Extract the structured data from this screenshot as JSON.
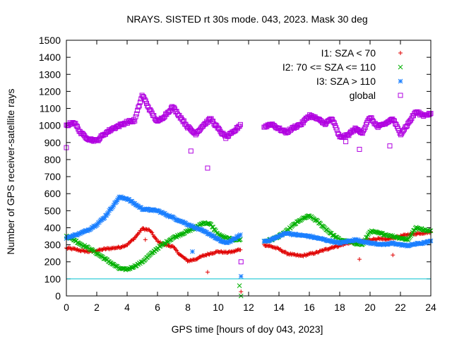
{
  "chart_data": {
    "type": "scatter",
    "title": "NRAYS. SISTED rt 30s mode. 043, 2023. Mask 30 deg",
    "xlabel": "GPS time [hours of doy 043, 2023]",
    "ylabel": "Number of GPS receiver-satellite rays",
    "xlim": [
      0,
      24
    ],
    "ylim": [
      0,
      1500
    ],
    "xticks": [
      "0",
      "2",
      "4",
      "6",
      "8",
      "10",
      "12",
      "14",
      "16",
      "18",
      "20",
      "22",
      "24"
    ],
    "yticks": [
      "0",
      "100",
      "200",
      "300",
      "400",
      "500",
      "600",
      "700",
      "800",
      "900",
      "1000",
      "1100",
      "1200",
      "1300",
      "1400",
      "1500"
    ],
    "legend_position": "top-right",
    "reference_line": {
      "y": 100,
      "color": "#00c0d0"
    },
    "gap": [
      11.6,
      12.9
    ],
    "series": [
      {
        "name": "I1: SZA < 70",
        "marker": "+",
        "color": "#e00000",
        "x": [
          0,
          0.5,
          1,
          1.5,
          2,
          2.5,
          3,
          3.5,
          4,
          4.5,
          5,
          5.5,
          6,
          6.5,
          7,
          7.5,
          8,
          8.5,
          9,
          9.5,
          10,
          10.5,
          11,
          11.5,
          13,
          13.5,
          14,
          14.5,
          15,
          15.5,
          16,
          16.5,
          17,
          17.5,
          18,
          18.5,
          19,
          19.5,
          20,
          20.5,
          21,
          21.5,
          22,
          22.5,
          23,
          23.5,
          24
        ],
        "values": [
          280,
          275,
          265,
          260,
          265,
          275,
          280,
          285,
          300,
          340,
          395,
          385,
          320,
          300,
          290,
          240,
          205,
          215,
          235,
          250,
          260,
          255,
          260,
          275,
          300,
          290,
          275,
          250,
          240,
          235,
          245,
          255,
          270,
          285,
          295,
          310,
          315,
          320,
          330,
          335,
          330,
          340,
          350,
          360,
          365,
          370,
          375
        ]
      },
      {
        "name": "I2: 70 <= SZA <= 110",
        "marker": "x",
        "color": "#00b000",
        "x": [
          0,
          0.5,
          1,
          1.5,
          2,
          2.5,
          3,
          3.5,
          4,
          4.5,
          5,
          5.5,
          6,
          6.5,
          7,
          7.5,
          8,
          8.5,
          9,
          9.5,
          10,
          10.5,
          11,
          11.5,
          13,
          13.5,
          14,
          14.5,
          15,
          15.5,
          16,
          16.5,
          17,
          17.5,
          18,
          18.5,
          19,
          19.5,
          20,
          20.5,
          21,
          21.5,
          22,
          22.5,
          23,
          23.5,
          24
        ],
        "values": [
          350,
          330,
          300,
          280,
          250,
          220,
          190,
          160,
          155,
          175,
          200,
          240,
          280,
          310,
          340,
          360,
          380,
          400,
          430,
          420,
          360,
          340,
          330,
          330,
          320,
          330,
          350,
          380,
          420,
          450,
          470,
          440,
          400,
          360,
          330,
          320,
          310,
          300,
          380,
          370,
          360,
          350,
          340,
          330,
          400,
          390,
          380
        ]
      },
      {
        "name": "I3: SZA > 110",
        "marker": "*",
        "color": "#1a7fff",
        "x": [
          0,
          0.5,
          1,
          1.5,
          2,
          2.5,
          3,
          3.5,
          4,
          4.5,
          5,
          5.5,
          6,
          6.5,
          7,
          7.5,
          8,
          8.5,
          9,
          9.5,
          10,
          10.5,
          11,
          11.5,
          13,
          13.5,
          14,
          14.5,
          15,
          15.5,
          16,
          16.5,
          17,
          17.5,
          18,
          18.5,
          19,
          19.5,
          20,
          20.5,
          21,
          21.5,
          22,
          22.5,
          23,
          23.5,
          24
        ],
        "values": [
          340,
          355,
          370,
          390,
          420,
          460,
          520,
          580,
          570,
          540,
          510,
          505,
          500,
          480,
          460,
          440,
          420,
          400,
          380,
          360,
          330,
          310,
          330,
          360,
          320,
          330,
          350,
          370,
          360,
          355,
          350,
          340,
          330,
          320,
          310,
          320,
          330,
          320,
          310,
          305,
          300,
          310,
          300,
          295,
          305,
          310,
          320
        ]
      },
      {
        "name": "global",
        "marker": "square",
        "color": "#b000e0",
        "x": [
          0,
          0.5,
          1,
          1.5,
          2,
          2.5,
          3,
          3.5,
          4,
          4.5,
          5,
          5.5,
          6,
          6.5,
          7,
          7.5,
          8,
          8.5,
          9,
          9.5,
          10,
          10.5,
          11,
          11.5,
          13,
          13.5,
          14,
          14.5,
          15,
          15.5,
          16,
          16.5,
          17,
          17.5,
          18,
          18.5,
          19,
          19.5,
          20,
          20.5,
          21,
          21.5,
          22,
          22.5,
          23,
          23.5,
          24
        ],
        "values": [
          1000,
          1020,
          950,
          920,
          910,
          950,
          980,
          1000,
          1020,
          1030,
          1180,
          1090,
          1020,
          1060,
          1110,
          1050,
          990,
          950,
          1000,
          1040,
          980,
          930,
          960,
          1010,
          990,
          1010,
          980,
          960,
          990,
          1010,
          1060,
          1040,
          1010,
          1040,
          930,
          940,
          980,
          960,
          1050,
          990,
          1010,
          1040,
          950,
          1010,
          1080,
          1060,
          1070
        ]
      }
    ],
    "outliers": [
      {
        "series": "I1: SZA < 70",
        "x": [
          5.2,
          9.3,
          11.5,
          19.3,
          21.5
        ],
        "values": [
          330,
          140,
          25,
          215,
          240
        ]
      },
      {
        "series": "I2: 70 <= SZA <= 110",
        "x": [
          11.4,
          11.5
        ],
        "values": [
          60,
          0
        ]
      },
      {
        "series": "I3: SZA > 110",
        "x": [
          8.3,
          11.5
        ],
        "values": [
          260,
          115
        ]
      },
      {
        "series": "global",
        "x": [
          0,
          8.2,
          9.3,
          11.5,
          18.4,
          19.3,
          21.3
        ],
        "values": [
          870,
          850,
          750,
          200,
          905,
          860,
          880
        ]
      }
    ]
  }
}
